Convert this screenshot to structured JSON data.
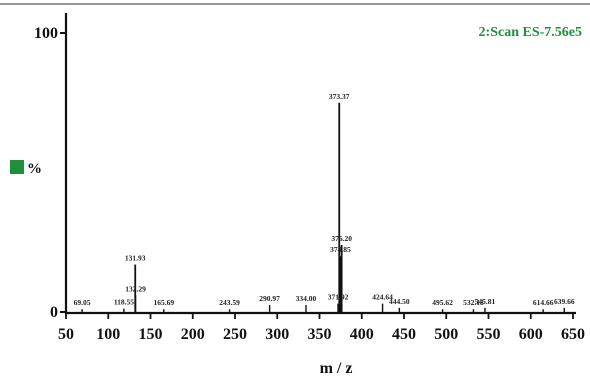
{
  "chart_data": {
    "type": "bar",
    "annotation": "2:Scan ES-7.56e5",
    "ylabel": "%",
    "xlabel": "m / z",
    "xlim": [
      50,
      650
    ],
    "ylim": [
      0,
      100
    ],
    "x_ticks": [
      50,
      100,
      150,
      200,
      250,
      300,
      350,
      400,
      450,
      500,
      550,
      600,
      650
    ],
    "y_ticks": [
      {
        "value": 0,
        "label": "0"
      },
      {
        "value": 100,
        "label": "100"
      }
    ],
    "peaks": [
      {
        "mz": 69.05,
        "intensity": 1.0,
        "label": "69.05"
      },
      {
        "mz": 118.55,
        "intensity": 1.2,
        "label": "118.55"
      },
      {
        "mz": 131.93,
        "intensity": 17.0,
        "label": "131.93"
      },
      {
        "mz": 132.29,
        "intensity": 6.0,
        "label": "132.29"
      },
      {
        "mz": 165.69,
        "intensity": 1.0,
        "label": "165.69"
      },
      {
        "mz": 243.59,
        "intensity": 1.0,
        "label": "243.59"
      },
      {
        "mz": 290.97,
        "intensity": 2.5,
        "label": "290.97"
      },
      {
        "mz": 334.0,
        "intensity": 2.5,
        "label": "334.00"
      },
      {
        "mz": 371.92,
        "intensity": 3.0,
        "label": "371.92"
      },
      {
        "mz": 373.37,
        "intensity": 75.0,
        "label": "373.37"
      },
      {
        "mz": 374.85,
        "intensity": 20.0,
        "label": "374.85"
      },
      {
        "mz": 376.2,
        "intensity": 24.0,
        "label": "376.20"
      },
      {
        "mz": 424.64,
        "intensity": 3.0,
        "label": "424.64"
      },
      {
        "mz": 444.5,
        "intensity": 1.5,
        "label": "444.50"
      },
      {
        "mz": 495.62,
        "intensity": 1.0,
        "label": "495.62"
      },
      {
        "mz": 532.18,
        "intensity": 1.0,
        "label": "532.18"
      },
      {
        "mz": 545.81,
        "intensity": 1.5,
        "label": "545.81"
      },
      {
        "mz": 614.66,
        "intensity": 1.0,
        "label": "614.66"
      },
      {
        "mz": 639.66,
        "intensity": 1.5,
        "label": "639.66"
      }
    ],
    "colors": {
      "annotation": "#1f8f3c",
      "legend_swatch": "#1f8f3c",
      "axis": "#111111",
      "peaks": "#111111"
    }
  }
}
